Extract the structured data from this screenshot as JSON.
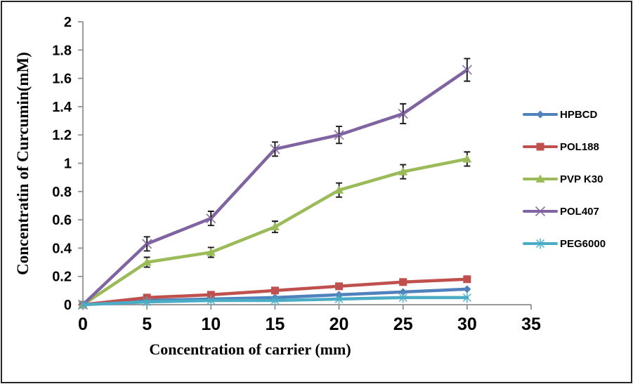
{
  "chart_data": {
    "type": "line",
    "title": "",
    "xlabel": "Concentration of carrier (mm)",
    "ylabel": "Concentratin of Curcumin(mM)",
    "xlim": [
      0,
      35
    ],
    "ylim": [
      0,
      2
    ],
    "x_ticks": [
      0,
      5,
      10,
      15,
      20,
      25,
      30,
      35
    ],
    "y_ticks": [
      0,
      0.2,
      0.4,
      0.6,
      0.8,
      1,
      1.2,
      1.4,
      1.6,
      1.8,
      2
    ],
    "grid": false,
    "legend_position": "right-outside",
    "axis_color": "#8c8c8c",
    "error_bar_color": "#1a1a1a",
    "x": [
      0,
      5,
      10,
      15,
      20,
      25,
      30
    ],
    "series": [
      {
        "name": "HPBCD",
        "color": "#4F81BD",
        "marker": "diamond",
        "values": [
          0,
          0.03,
          0.04,
          0.05,
          0.07,
          0.09,
          0.11
        ],
        "errors": [
          0,
          0,
          0,
          0,
          0,
          0,
          0
        ]
      },
      {
        "name": "POL188",
        "color": "#C0504D",
        "marker": "square",
        "values": [
          0,
          0.05,
          0.07,
          0.1,
          0.13,
          0.16,
          0.18
        ],
        "errors": [
          0,
          0,
          0,
          0,
          0,
          0,
          0
        ]
      },
      {
        "name": "PVP K30",
        "color": "#9BBB59",
        "marker": "triangle",
        "values": [
          0,
          0.3,
          0.37,
          0.55,
          0.81,
          0.94,
          1.03
        ],
        "errors": [
          0,
          0.035,
          0.035,
          0.04,
          0.05,
          0.05,
          0.05
        ]
      },
      {
        "name": "POL407",
        "color": "#8064A2",
        "marker": "x",
        "values": [
          0,
          0.43,
          0.61,
          1.1,
          1.2,
          1.35,
          1.66
        ],
        "errors": [
          0,
          0.05,
          0.05,
          0.05,
          0.06,
          0.07,
          0.08
        ]
      },
      {
        "name": "PEG6000",
        "color": "#4BACC6",
        "marker": "asterisk",
        "values": [
          0,
          0.02,
          0.03,
          0.03,
          0.04,
          0.05,
          0.05
        ],
        "errors": [
          0,
          0,
          0,
          0,
          0,
          0,
          0
        ]
      }
    ]
  }
}
